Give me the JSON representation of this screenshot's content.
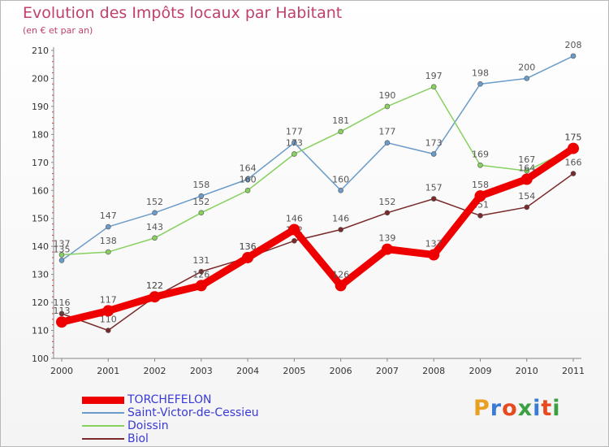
{
  "header": {
    "title": "Evolution des Impôts locaux par Habitant",
    "subtitle": "(en € et par an)"
  },
  "logo": {
    "text": "Proxiti",
    "colors": [
      "#e8a020",
      "#3a7bd5",
      "#e84a20",
      "#3aa040",
      "#3a7bd5",
      "#e84a20",
      "#3aa040"
    ]
  },
  "chart_data": {
    "type": "line",
    "x": [
      "2000",
      "2001",
      "2002",
      "2003",
      "2004",
      "2005",
      "2006",
      "2007",
      "2008",
      "2009",
      "2010",
      "2011"
    ],
    "ylim": [
      100,
      210
    ],
    "yticks": [
      100,
      110,
      120,
      130,
      140,
      150,
      160,
      170,
      180,
      190,
      200,
      210
    ],
    "grid": false,
    "legend_position": "bottom-left",
    "series": [
      {
        "name": "TORCHEFELON",
        "color": "#ee0000",
        "width": 9,
        "values": [
          113,
          117,
          122,
          126,
          136,
          146,
          126,
          139,
          137,
          158,
          164,
          175
        ]
      },
      {
        "name": "Saint-Victor-de-Cessieu",
        "color": "#6b9bc8",
        "width": 1.5,
        "values": [
          135,
          147,
          152,
          158,
          164,
          177,
          160,
          177,
          173,
          198,
          200,
          208
        ]
      },
      {
        "name": "Doissin",
        "color": "#88d060",
        "width": 1.5,
        "values": [
          137,
          138,
          143,
          152,
          160,
          173,
          181,
          190,
          197,
          169,
          167,
          175
        ]
      },
      {
        "name": "Biol",
        "color": "#7a2a2a",
        "width": 1.5,
        "values": [
          116,
          110,
          122,
          131,
          136,
          142,
          146,
          152,
          157,
          151,
          154,
          166
        ]
      }
    ]
  }
}
